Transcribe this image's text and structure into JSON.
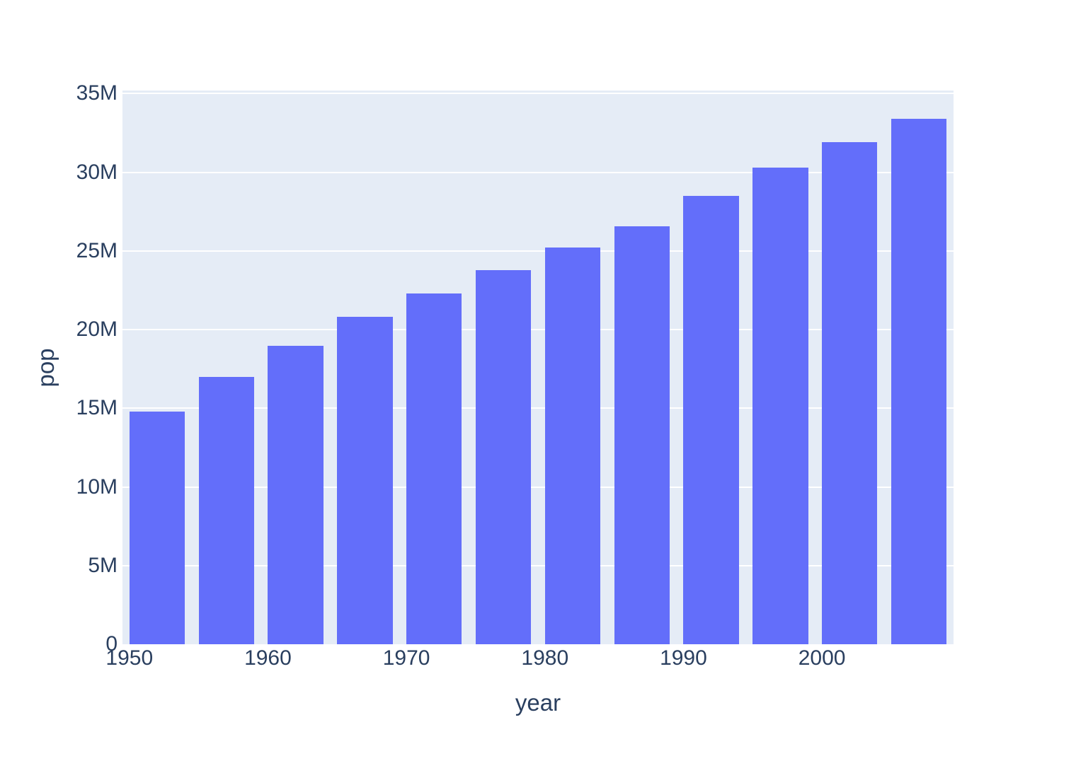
{
  "chart_data": {
    "type": "bar",
    "title": "",
    "xlabel": "year",
    "ylabel": "pop",
    "x": [
      1952,
      1957,
      1962,
      1967,
      1972,
      1977,
      1982,
      1987,
      1992,
      1997,
      2002,
      2007
    ],
    "series": [
      {
        "name": "pop",
        "values": [
          14785584,
          17010154,
          18985849,
          20819767,
          22284500,
          23796400,
          25201900,
          26549700,
          28523502,
          30305843,
          31902268,
          33390141
        ]
      }
    ],
    "xlim": [
      1949.5,
      2009.5
    ],
    "ylim": [
      0,
      35200000
    ],
    "bar_width_x_units": 4,
    "x_ticks": [
      {
        "value": 1950,
        "label": "1950"
      },
      {
        "value": 1960,
        "label": "1960"
      },
      {
        "value": 1970,
        "label": "1970"
      },
      {
        "value": 1980,
        "label": "1980"
      },
      {
        "value": 1990,
        "label": "1990"
      },
      {
        "value": 2000,
        "label": "2000"
      }
    ],
    "y_ticks": [
      {
        "value": 0,
        "label": "0"
      },
      {
        "value": 5000000,
        "label": "5M"
      },
      {
        "value": 10000000,
        "label": "10M"
      },
      {
        "value": 15000000,
        "label": "15M"
      },
      {
        "value": 20000000,
        "label": "20M"
      },
      {
        "value": 25000000,
        "label": "25M"
      },
      {
        "value": 30000000,
        "label": "30M"
      },
      {
        "value": 35000000,
        "label": "35M"
      }
    ],
    "grid": true,
    "legend": "none",
    "colors": {
      "bar": "#636EFA",
      "plot_background": "#E5ECF6",
      "gridline": "#FFFFFF",
      "text": "#2A3F5F",
      "page_background": "#FFFFFF"
    }
  }
}
